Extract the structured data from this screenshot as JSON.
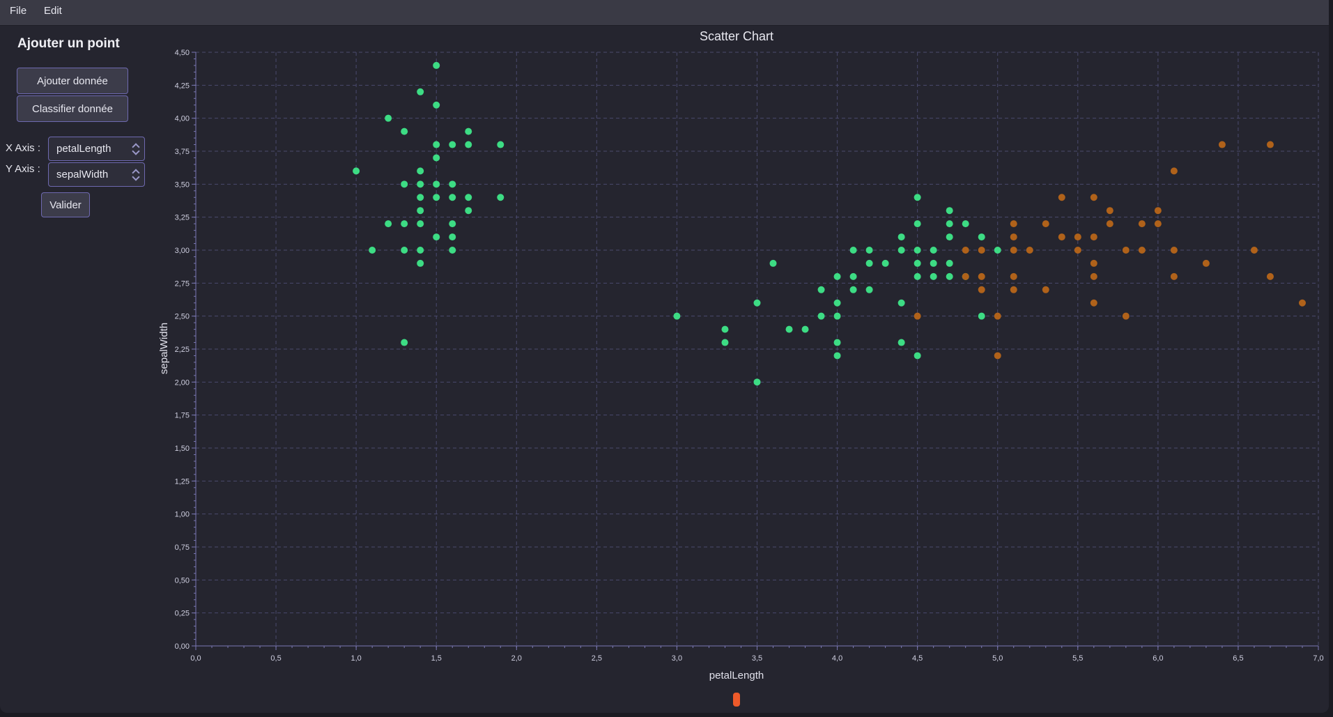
{
  "menu": {
    "items": [
      "File",
      "Edit"
    ]
  },
  "sidebar": {
    "title": "Ajouter un point",
    "add_button": "Ajouter donnée",
    "classify_button": "Classifier donnée",
    "x_axis_label": "X Axis :",
    "x_axis_value": "petalLength",
    "y_axis_label": "Y Axis :",
    "y_axis_value": "sepalWidth",
    "validate_button": "Valider"
  },
  "colors": {
    "series_green": "#3ddc84",
    "series_orange": "#b0621a",
    "grid": "#4a4a6e",
    "axis": "#7a78b4"
  },
  "chart_data": {
    "type": "scatter",
    "title": "Scatter Chart",
    "xlabel": "petalLength",
    "ylabel": "sepalWidth",
    "xlim": [
      0,
      7
    ],
    "ylim": [
      0,
      4.5
    ],
    "x_ticks": [
      "0,0",
      "0,5",
      "1,0",
      "1,5",
      "2,0",
      "2,5",
      "3,0",
      "3,5",
      "4,0",
      "4,5",
      "5,0",
      "5,5",
      "6,0",
      "6,5",
      "7,0"
    ],
    "y_ticks": [
      "0,00",
      "0,25",
      "0,50",
      "0,75",
      "1,00",
      "1,25",
      "1,50",
      "1,75",
      "2,00",
      "2,25",
      "2,50",
      "2,75",
      "3,00",
      "3,25",
      "3,50",
      "3,75",
      "4,00",
      "4,25",
      "4,50"
    ],
    "grid": true,
    "legend": "none",
    "series": [
      {
        "color": "#3ddc84",
        "points": [
          [
            1.0,
            3.6
          ],
          [
            1.1,
            3.0
          ],
          [
            1.2,
            4.0
          ],
          [
            1.2,
            3.2
          ],
          [
            1.3,
            3.9
          ],
          [
            1.3,
            3.5
          ],
          [
            1.3,
            3.2
          ],
          [
            1.3,
            3.0
          ],
          [
            1.3,
            2.3
          ],
          [
            1.4,
            4.2
          ],
          [
            1.4,
            3.6
          ],
          [
            1.4,
            3.5
          ],
          [
            1.4,
            3.4
          ],
          [
            1.4,
            3.3
          ],
          [
            1.4,
            3.2
          ],
          [
            1.4,
            3.0
          ],
          [
            1.4,
            2.9
          ],
          [
            1.5,
            4.4
          ],
          [
            1.5,
            4.1
          ],
          [
            1.5,
            3.8
          ],
          [
            1.5,
            3.7
          ],
          [
            1.5,
            3.5
          ],
          [
            1.5,
            3.4
          ],
          [
            1.5,
            3.1
          ],
          [
            1.6,
            3.8
          ],
          [
            1.6,
            3.5
          ],
          [
            1.6,
            3.4
          ],
          [
            1.6,
            3.2
          ],
          [
            1.6,
            3.1
          ],
          [
            1.6,
            3.0
          ],
          [
            1.7,
            3.9
          ],
          [
            1.7,
            3.8
          ],
          [
            1.7,
            3.4
          ],
          [
            1.7,
            3.3
          ],
          [
            1.9,
            3.8
          ],
          [
            1.9,
            3.4
          ],
          [
            3.0,
            2.5
          ],
          [
            3.3,
            2.4
          ],
          [
            3.3,
            2.3
          ],
          [
            3.5,
            2.6
          ],
          [
            3.5,
            2.0
          ],
          [
            3.6,
            2.9
          ],
          [
            3.7,
            2.4
          ],
          [
            3.8,
            2.4
          ],
          [
            3.9,
            2.7
          ],
          [
            3.9,
            2.5
          ],
          [
            4.0,
            2.8
          ],
          [
            4.0,
            2.6
          ],
          [
            4.0,
            2.5
          ],
          [
            4.0,
            2.3
          ],
          [
            4.0,
            2.2
          ],
          [
            4.1,
            3.0
          ],
          [
            4.1,
            2.8
          ],
          [
            4.1,
            2.7
          ],
          [
            4.2,
            3.0
          ],
          [
            4.2,
            2.9
          ],
          [
            4.2,
            2.7
          ],
          [
            4.3,
            2.9
          ],
          [
            4.4,
            3.1
          ],
          [
            4.4,
            3.0
          ],
          [
            4.4,
            2.6
          ],
          [
            4.4,
            2.3
          ],
          [
            4.5,
            3.4
          ],
          [
            4.5,
            3.2
          ],
          [
            4.5,
            3.0
          ],
          [
            4.5,
            2.9
          ],
          [
            4.5,
            2.8
          ],
          [
            4.5,
            2.2
          ],
          [
            4.6,
            3.0
          ],
          [
            4.6,
            2.9
          ],
          [
            4.6,
            2.8
          ],
          [
            4.7,
            3.3
          ],
          [
            4.7,
            3.2
          ],
          [
            4.7,
            3.1
          ],
          [
            4.7,
            2.9
          ],
          [
            4.7,
            2.8
          ],
          [
            4.8,
            3.2
          ],
          [
            4.8,
            2.8
          ],
          [
            4.9,
            3.1
          ],
          [
            4.9,
            2.5
          ],
          [
            5.0,
            3.0
          ]
        ]
      },
      {
        "color": "#b0621a",
        "points": [
          [
            4.5,
            2.5
          ],
          [
            4.8,
            3.0
          ],
          [
            4.8,
            2.8
          ],
          [
            4.9,
            3.0
          ],
          [
            4.9,
            2.8
          ],
          [
            4.9,
            2.7
          ],
          [
            5.0,
            2.5
          ],
          [
            5.0,
            2.2
          ],
          [
            5.1,
            3.2
          ],
          [
            5.1,
            3.1
          ],
          [
            5.1,
            3.0
          ],
          [
            5.1,
            2.8
          ],
          [
            5.1,
            2.7
          ],
          [
            5.2,
            3.0
          ],
          [
            5.3,
            3.2
          ],
          [
            5.3,
            2.7
          ],
          [
            5.4,
            3.4
          ],
          [
            5.4,
            3.1
          ],
          [
            5.5,
            3.1
          ],
          [
            5.5,
            3.0
          ],
          [
            5.6,
            3.4
          ],
          [
            5.6,
            3.1
          ],
          [
            5.6,
            2.9
          ],
          [
            5.6,
            2.8
          ],
          [
            5.6,
            2.6
          ],
          [
            5.7,
            3.3
          ],
          [
            5.7,
            3.2
          ],
          [
            5.8,
            3.0
          ],
          [
            5.8,
            2.5
          ],
          [
            5.9,
            3.2
          ],
          [
            5.9,
            3.0
          ],
          [
            6.0,
            3.3
          ],
          [
            6.0,
            3.2
          ],
          [
            6.1,
            3.6
          ],
          [
            6.1,
            3.0
          ],
          [
            6.1,
            2.8
          ],
          [
            6.3,
            2.9
          ],
          [
            6.4,
            3.8
          ],
          [
            6.6,
            3.0
          ],
          [
            6.7,
            3.8
          ],
          [
            6.7,
            2.8
          ],
          [
            6.9,
            2.6
          ]
        ]
      }
    ]
  }
}
